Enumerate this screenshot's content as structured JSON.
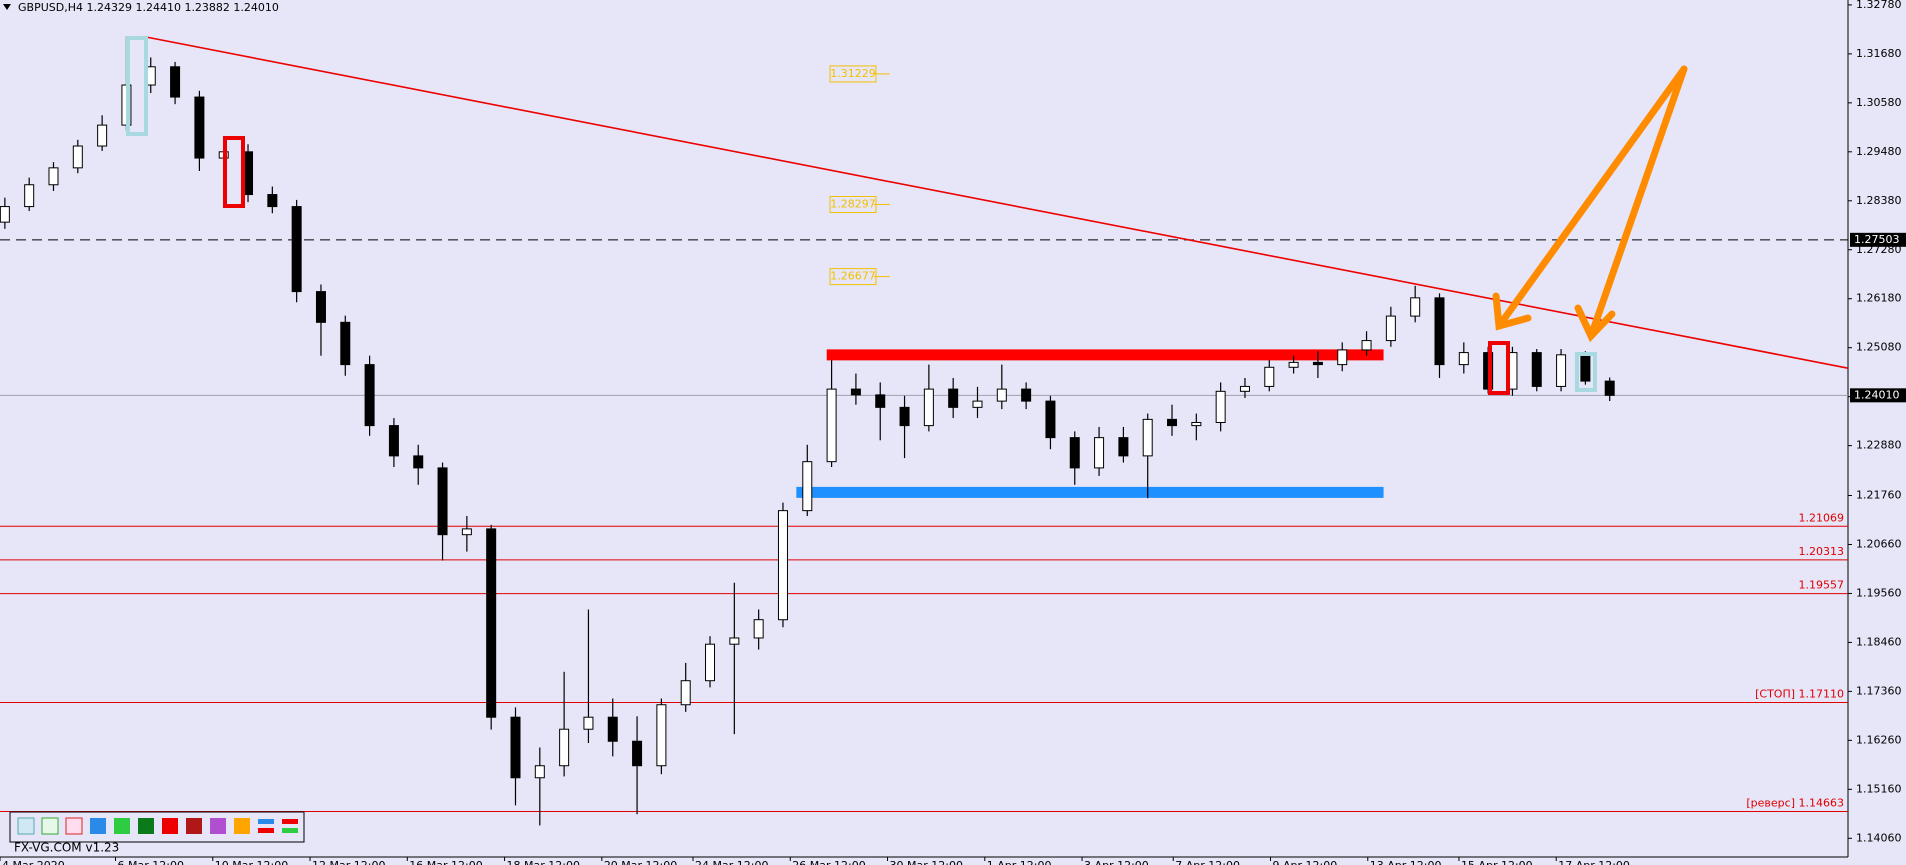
{
  "chart_data": {
    "type": "candlestick",
    "title": "GBPUSD,H4  1.24329 1.24410 1.23882 1.24010",
    "ohlc": [
      [
        1.279,
        1.2845,
        1.2775,
        1.2825
      ],
      [
        1.2825,
        1.289,
        1.2815,
        1.2874
      ],
      [
        1.2874,
        1.2925,
        1.286,
        1.2912
      ],
      [
        1.2912,
        1.2975,
        1.29,
        1.2961
      ],
      [
        1.2961,
        1.303,
        1.295,
        1.3008
      ],
      [
        1.3008,
        1.3207,
        1.2995,
        1.3098
      ],
      [
        1.3098,
        1.316,
        1.308,
        1.3139
      ],
      [
        1.3139,
        1.315,
        1.3055,
        1.3071
      ],
      [
        1.3071,
        1.3085,
        1.2905,
        1.2934
      ],
      [
        1.2934,
        1.298,
        1.2895,
        1.2948
      ],
      [
        1.2948,
        1.2965,
        1.2835,
        1.2852
      ],
      [
        1.2852,
        1.287,
        1.281,
        1.2825
      ],
      [
        1.2825,
        1.284,
        1.261,
        1.2634
      ],
      [
        1.2634,
        1.265,
        1.249,
        1.2565
      ],
      [
        1.2565,
        1.258,
        1.2445,
        1.247
      ],
      [
        1.247,
        1.249,
        1.231,
        1.2333
      ],
      [
        1.2333,
        1.235,
        1.224,
        1.2265
      ],
      [
        1.2265,
        1.229,
        1.22,
        1.2238
      ],
      [
        1.2238,
        1.225,
        1.203,
        1.2088
      ],
      [
        1.2088,
        1.213,
        1.205,
        1.2101
      ],
      [
        1.2101,
        1.211,
        1.165,
        1.1678
      ],
      [
        1.1678,
        1.17,
        1.148,
        1.1542
      ],
      [
        1.1542,
        1.161,
        1.1435,
        1.1569
      ],
      [
        1.1569,
        1.178,
        1.1545,
        1.1651
      ],
      [
        1.1651,
        1.192,
        1.162,
        1.1678
      ],
      [
        1.1678,
        1.172,
        1.159,
        1.1624
      ],
      [
        1.1624,
        1.168,
        1.146,
        1.1569
      ],
      [
        1.1569,
        1.172,
        1.155,
        1.1706
      ],
      [
        1.1706,
        1.18,
        1.169,
        1.176
      ],
      [
        1.176,
        1.186,
        1.1745,
        1.1842
      ],
      [
        1.1842,
        1.198,
        1.164,
        1.1856
      ],
      [
        1.1856,
        1.192,
        1.183,
        1.1897
      ],
      [
        1.1897,
        1.216,
        1.188,
        1.2142
      ],
      [
        1.2142,
        1.229,
        1.213,
        1.2252
      ],
      [
        1.2252,
        1.248,
        1.224,
        1.2415
      ],
      [
        1.2415,
        1.245,
        1.238,
        1.2402
      ],
      [
        1.2402,
        1.243,
        1.23,
        1.2374
      ],
      [
        1.2374,
        1.24,
        1.226,
        1.2333
      ],
      [
        1.2333,
        1.247,
        1.232,
        1.2415
      ],
      [
        1.2415,
        1.244,
        1.235,
        1.2374
      ],
      [
        1.2374,
        1.242,
        1.235,
        1.2388
      ],
      [
        1.2388,
        1.247,
        1.237,
        1.2415
      ],
      [
        1.2415,
        1.243,
        1.237,
        1.2388
      ],
      [
        1.2388,
        1.24,
        1.228,
        1.2306
      ],
      [
        1.2306,
        1.232,
        1.22,
        1.2238
      ],
      [
        1.2238,
        1.233,
        1.222,
        1.2306
      ],
      [
        1.2306,
        1.233,
        1.225,
        1.2265
      ],
      [
        1.2265,
        1.236,
        1.217,
        1.2347
      ],
      [
        1.2347,
        1.238,
        1.231,
        1.2333
      ],
      [
        1.2333,
        1.236,
        1.23,
        1.234
      ],
      [
        1.234,
        1.243,
        1.232,
        1.241
      ],
      [
        1.241,
        1.244,
        1.2395,
        1.2421
      ],
      [
        1.2421,
        1.248,
        1.241,
        1.2464
      ],
      [
        1.2464,
        1.249,
        1.245,
        1.2475
      ],
      [
        1.2475,
        1.25,
        1.244,
        1.247
      ],
      [
        1.247,
        1.252,
        1.2455,
        1.2503
      ],
      [
        1.2503,
        1.2545,
        1.249,
        1.2524
      ],
      [
        1.2524,
        1.26,
        1.251,
        1.2579
      ],
      [
        1.2579,
        1.2647,
        1.2565,
        1.262
      ],
      [
        1.262,
        1.263,
        1.244,
        1.247
      ],
      [
        1.247,
        1.252,
        1.245,
        1.2497
      ],
      [
        1.2497,
        1.251,
        1.2405,
        1.2415
      ],
      [
        1.2415,
        1.251,
        1.24,
        1.2497
      ],
      [
        1.2497,
        1.2505,
        1.241,
        1.2421
      ],
      [
        1.2421,
        1.2505,
        1.241,
        1.2492
      ],
      [
        1.2492,
        1.25,
        1.2425,
        1.2433
      ],
      [
        1.24329,
        1.2441,
        1.23882,
        1.2401
      ]
    ],
    "xlim": [
      -0.2,
      75.8
    ],
    "ylim": [
      1.1364,
      1.3289
    ],
    "yticks": [
      {
        "value": 1.3278,
        "label": "1.32780"
      },
      {
        "value": 1.3168,
        "label": "1.31680"
      },
      {
        "value": 1.3058,
        "label": "1.30580"
      },
      {
        "value": 1.2948,
        "label": "1.29480"
      },
      {
        "value": 1.2838,
        "label": "1.28380"
      },
      {
        "value": 1.2728,
        "label": "1.27280"
      },
      {
        "value": 1.2618,
        "label": "1.26180"
      },
      {
        "value": 1.2508,
        "label": "1.25080"
      },
      {
        "value": 1.2398,
        "label": "1.23980"
      },
      {
        "value": 1.2288,
        "label": "1.22880"
      },
      {
        "value": 1.2176,
        "label": "1.21760"
      },
      {
        "value": 1.2066,
        "label": "1.20660"
      },
      {
        "value": 1.1956,
        "label": "1.19560"
      },
      {
        "value": 1.1846,
        "label": "1.18460"
      },
      {
        "value": 1.1736,
        "label": "1.17360"
      },
      {
        "value": 1.1626,
        "label": "1.16260"
      },
      {
        "value": 1.1516,
        "label": "1.15160"
      },
      {
        "value": 1.1406,
        "label": "1.14060"
      }
    ],
    "xticks": [
      {
        "value": -0.2,
        "label": "4 Mar 2020"
      },
      {
        "value": 4.55,
        "label": "6 Mar 12:00"
      },
      {
        "value": 8.55,
        "label": "10 Mar 12:00"
      },
      {
        "value": 12.55,
        "label": "12 Mar 12:00"
      },
      {
        "value": 16.55,
        "label": "16 Mar 12:00"
      },
      {
        "value": 20.55,
        "label": "18 Mar 12:00"
      },
      {
        "value": 24.55,
        "label": "20 Mar 12:00"
      },
      {
        "value": 28.3,
        "label": "24 Mar 12:00"
      },
      {
        "value": 32.3,
        "label": "26 Mar 12:00"
      },
      {
        "value": 36.3,
        "label": "30 Mar 12:00"
      },
      {
        "value": 40.3,
        "label": "1 Apr 12:00"
      },
      {
        "value": 44.3,
        "label": "3 Apr 12:00"
      },
      {
        "value": 48.05,
        "label": "7 Apr 12:00"
      },
      {
        "value": 52.05,
        "label": "9 Apr 12:00"
      },
      {
        "value": 56.05,
        "label": "13 Apr 12:00"
      },
      {
        "value": 59.8,
        "label": "15 Apr 12:00"
      },
      {
        "value": 63.8,
        "label": "17 Apr 12:00"
      }
    ],
    "price_tags": [
      1.27503,
      {
        "value": 1.2401,
        "label": "1.24010"
      }
    ],
    "levels": [
      {
        "value": 1.21069,
        "label": "1.21069"
      },
      {
        "value": 1.20313,
        "label": "1.20313"
      },
      {
        "value": 1.19557,
        "label": "1.19557"
      },
      {
        "value": 1.1711,
        "label": "[СТОП] 1.17110"
      },
      {
        "value": 1.14663,
        "label": "[реверс] 1.14663"
      }
    ],
    "targets": [
      1.31229,
      1.28297,
      1.26677
    ],
    "trend_line": {
      "x": [
        5.7,
        75.8
      ],
      "y": [
        1.3207,
        1.2462
      ]
    },
    "resistance": {
      "x": [
        33.8,
        56.7
      ],
      "y": 1.2492
    },
    "support": {
      "x": [
        32.55,
        56.7
      ],
      "y": 1.2183
    },
    "up_color": "#ffffff",
    "down_color": "#000000",
    "watermark": "FX-VG.COM  v1.23"
  }
}
